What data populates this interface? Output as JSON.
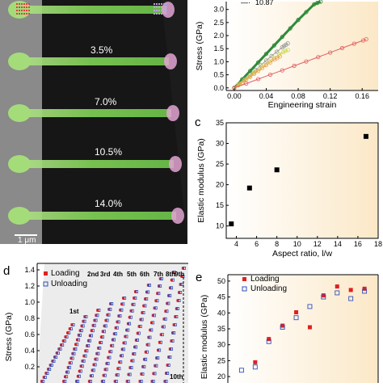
{
  "micrograph": {
    "strain_labels": [
      "3.5%",
      "7.0%",
      "10.5%",
      "14.0%"
    ],
    "scale_bar_label": "1 μm",
    "colors": {
      "background": "#1c1c1c",
      "left_gray": "#8a8a8a",
      "wire": "#7fcf55",
      "tip": "#e3a5d2"
    }
  },
  "chart_data": [
    {
      "id": "b",
      "type": "line",
      "panel_label": "",
      "xlabel": "Engineering strain",
      "ylabel": "Stress (GPa)",
      "xlim": [
        -0.01,
        0.18
      ],
      "ylim": [
        -0.1,
        3.3
      ],
      "xticks": [
        "0.00",
        "0.04",
        "0.08",
        "0.12",
        "0.16"
      ],
      "yticks": [
        "0.0",
        "0.5",
        "1.0",
        "1.5",
        "2.0",
        "2.5",
        "3.0"
      ],
      "legend_fragment": [
        "—·",
        "10.87"
      ],
      "gradient": [
        "#ffffff",
        "#fbe8c7"
      ],
      "series": [
        {
          "color": "#2f8a3a",
          "x": [
            0.0,
            0.02,
            0.04,
            0.06,
            0.08,
            0.1,
            0.108
          ],
          "y": [
            0.0,
            0.65,
            1.3,
            1.95,
            2.6,
            3.2,
            3.3
          ]
        },
        {
          "color": "#9a9a9a",
          "x": [
            0.0,
            0.02,
            0.04,
            0.06,
            0.067
          ],
          "y": [
            0.0,
            0.5,
            1.05,
            1.55,
            1.7
          ]
        },
        {
          "color": "#c9d94a",
          "x": [
            0.0,
            0.015,
            0.03,
            0.045,
            0.06,
            0.067
          ],
          "y": [
            0.0,
            0.35,
            0.7,
            1.05,
            1.35,
            1.45
          ]
        },
        {
          "color": "#e8a050",
          "x": [
            0.0,
            0.01,
            0.02,
            0.03,
            0.04,
            0.05,
            0.057
          ],
          "y": [
            0.0,
            0.2,
            0.42,
            0.65,
            0.87,
            1.08,
            1.2
          ]
        },
        {
          "color": "#e06060",
          "x": [
            0.0,
            0.02,
            0.04,
            0.06,
            0.08,
            0.1,
            0.12,
            0.14,
            0.16,
            0.165
          ],
          "y": [
            0.0,
            0.22,
            0.45,
            0.67,
            0.9,
            1.12,
            1.35,
            1.58,
            1.8,
            1.86
          ]
        }
      ]
    },
    {
      "id": "c",
      "type": "scatter",
      "panel_label": "c",
      "xlabel": "Aspect ratio, l/w",
      "ylabel": "Elastic modulus (GPa)",
      "xlim": [
        3,
        18
      ],
      "ylim": [
        7,
        35
      ],
      "xticks": [
        4,
        6,
        8,
        10,
        12,
        14,
        16,
        18
      ],
      "yticks": [
        10,
        15,
        20,
        25,
        30,
        35
      ],
      "gradient": [
        "#ffffff",
        "#fbe8c7"
      ],
      "points": [
        {
          "x": 3.5,
          "y": 10.5
        },
        {
          "x": 5.3,
          "y": 19.2
        },
        {
          "x": 8.0,
          "y": 23.6
        },
        {
          "x": 16.8,
          "y": 31.7
        }
      ]
    },
    {
      "id": "d",
      "type": "scatter",
      "panel_label": "d",
      "xlabel": "",
      "ylabel": "Stress (GPa)",
      "xlim": [
        0,
        10
      ],
      "ylim": [
        0,
        1.48
      ],
      "yticks": [
        "0.2",
        "0.4",
        "0.6",
        "0.8",
        "1.0",
        "1.2",
        "1.4"
      ],
      "cycle_labels": [
        "1st",
        "2nd",
        "3rd",
        "4th",
        "5th",
        "6th",
        "7th",
        "8th",
        "9th",
        "10th"
      ],
      "legend": [
        "Loading",
        "Unloading"
      ],
      "colors": {
        "loading": "#e02020",
        "unloading": "#3050c0"
      },
      "cycle_ends": [
        {
          "x": 2.3,
          "y": 0.72
        },
        {
          "x": 3.15,
          "y": 0.82
        },
        {
          "x": 4.0,
          "y": 0.9
        },
        {
          "x": 4.85,
          "y": 0.98
        },
        {
          "x": 5.7,
          "y": 1.05
        },
        {
          "x": 6.5,
          "y": 1.13
        },
        {
          "x": 7.35,
          "y": 1.21
        },
        {
          "x": 8.15,
          "y": 1.29
        },
        {
          "x": 9.0,
          "y": 1.37
        },
        {
          "x": 9.65,
          "y": 1.42
        }
      ]
    },
    {
      "id": "e",
      "type": "scatter",
      "panel_label": "e",
      "xlabel": "",
      "ylabel": "Elastic modulus (GPa)",
      "xlim": [
        0,
        11
      ],
      "ylim": [
        18,
        52
      ],
      "yticks": [
        20,
        25,
        30,
        35,
        40,
        45,
        50
      ],
      "legend": [
        "Loading",
        "Unloading"
      ],
      "gradient": [
        "#ffffff",
        "#fbe8c7"
      ],
      "loading": [
        {
          "x": 2,
          "y": 24.5
        },
        {
          "x": 3,
          "y": 31.8
        },
        {
          "x": 4,
          "y": 36.0
        },
        {
          "x": 5,
          "y": 40.2
        },
        {
          "x": 6,
          "y": 35.5
        },
        {
          "x": 7,
          "y": 45.5
        },
        {
          "x": 8,
          "y": 48.3
        },
        {
          "x": 9,
          "y": 47.2
        },
        {
          "x": 10,
          "y": 47.6
        }
      ],
      "unloading": [
        {
          "x": 1,
          "y": 22.0
        },
        {
          "x": 2,
          "y": 23.0
        },
        {
          "x": 3,
          "y": 31.0
        },
        {
          "x": 4,
          "y": 35.5
        },
        {
          "x": 5,
          "y": 38.5
        },
        {
          "x": 6,
          "y": 42.0
        },
        {
          "x": 7,
          "y": 45.0
        },
        {
          "x": 8,
          "y": 46.3
        },
        {
          "x": 9,
          "y": 44.5
        },
        {
          "x": 10,
          "y": 46.8
        }
      ]
    }
  ]
}
